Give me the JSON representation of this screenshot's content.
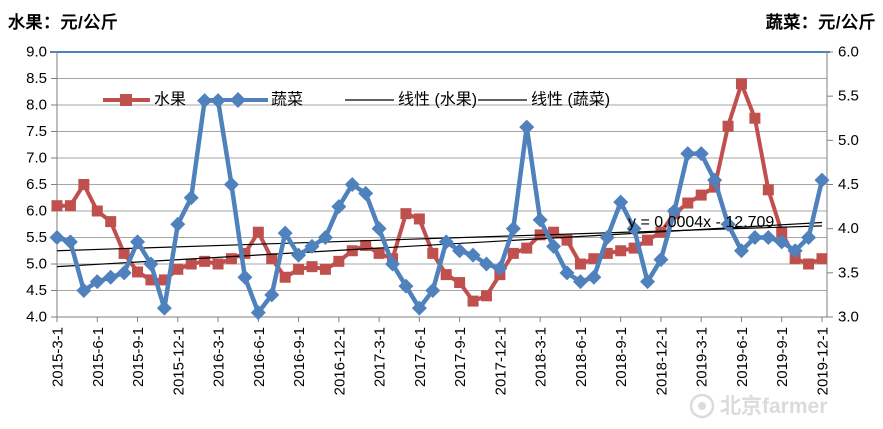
{
  "titles": {
    "left_axis_title": "水果：元/公斤",
    "right_axis_title": "蔬菜：元/公斤"
  },
  "legend": {
    "position": "top-inside",
    "items": [
      {
        "label": "水果",
        "marker": "square",
        "color": "#C0504D"
      },
      {
        "label": "蔬菜",
        "marker": "diamond",
        "color": "#4F81BD"
      },
      {
        "label": "线性 (水果)",
        "marker": "line",
        "color": "#000000"
      },
      {
        "label": "线性 (蔬菜)",
        "marker": "line",
        "color": "#000000"
      }
    ]
  },
  "watermark": {
    "icon": "weibo-logo",
    "text": "北京farmer",
    "color": "#cfcfcf"
  },
  "colors": {
    "fruit": "#C0504D",
    "vegetable": "#4F81BD",
    "gridline": "#a6a6a6",
    "plot_border": "#7f7f7f",
    "top_border": "#4F81BD",
    "trendline": "#000000",
    "text": "#000000"
  },
  "chart_data": {
    "type": "line",
    "grid": true,
    "x": [
      "2015-3-1",
      "2015-4-1",
      "2015-5-1",
      "2015-6-1",
      "2015-7-1",
      "2015-8-1",
      "2015-9-1",
      "2015-10-1",
      "2015-11-1",
      "2015-12-1",
      "2016-1-1",
      "2016-2-1",
      "2016-3-1",
      "2016-4-1",
      "2016-5-1",
      "2016-6-1",
      "2016-7-1",
      "2016-8-1",
      "2016-9-1",
      "2016-10-1",
      "2016-11-1",
      "2016-12-1",
      "2017-1-1",
      "2017-2-1",
      "2017-3-1",
      "2017-4-1",
      "2017-5-1",
      "2017-6-1",
      "2017-7-1",
      "2017-8-1",
      "2017-9-1",
      "2017-10-1",
      "2017-11-1",
      "2017-12-1",
      "2018-1-1",
      "2018-2-1",
      "2018-3-1",
      "2018-4-1",
      "2018-5-1",
      "2018-6-1",
      "2018-7-1",
      "2018-8-1",
      "2018-9-1",
      "2018-10-1",
      "2018-11-1",
      "2018-12-1",
      "2019-1-1",
      "2019-2-1",
      "2019-3-1",
      "2019-4-1",
      "2019-5-1",
      "2019-6-1",
      "2019-7-1",
      "2019-8-1",
      "2019-9-1",
      "2019-10-1",
      "2019-11-1",
      "2019-12-1"
    ],
    "x_tick_labels": [
      "2015-3-1",
      "2015-6-1",
      "2015-9-1",
      "2015-12-1",
      "2016-3-1",
      "2016-6-1",
      "2016-9-1",
      "2016-12-1",
      "2017-3-1",
      "2017-6-1",
      "2017-9-1",
      "2017-12-1",
      "2018-3-1",
      "2018-6-1",
      "2018-9-1",
      "2018-12-1",
      "2019-3-1",
      "2019-6-1",
      "2019-9-1",
      "2019-12-1"
    ],
    "series": [
      {
        "name": "水果",
        "axis": "left",
        "color": "#C0504D",
        "marker": "square",
        "values": [
          6.1,
          6.1,
          6.5,
          6.0,
          5.8,
          5.2,
          4.85,
          4.7,
          4.7,
          4.9,
          5.0,
          5.05,
          5.0,
          5.1,
          5.2,
          5.6,
          5.1,
          4.75,
          4.9,
          4.95,
          4.9,
          5.05,
          5.25,
          5.35,
          5.2,
          5.1,
          5.95,
          5.85,
          5.2,
          4.8,
          4.65,
          4.3,
          4.4,
          4.8,
          5.2,
          5.3,
          5.55,
          5.6,
          5.45,
          5.0,
          5.1,
          5.2,
          5.25,
          5.3,
          5.45,
          5.6,
          5.95,
          6.15,
          6.3,
          6.45,
          7.6,
          8.4,
          7.75,
          6.4,
          5.6,
          5.1,
          5.0,
          5.1
        ]
      },
      {
        "name": "蔬菜",
        "axis": "right",
        "color": "#4F81BD",
        "marker": "diamond",
        "values": [
          3.9,
          3.85,
          3.3,
          3.4,
          3.45,
          3.5,
          3.85,
          3.6,
          3.1,
          4.05,
          4.35,
          5.45,
          5.45,
          4.5,
          3.45,
          3.05,
          3.25,
          3.95,
          3.7,
          3.8,
          3.9,
          4.25,
          4.5,
          4.4,
          4.0,
          3.6,
          3.35,
          3.1,
          3.3,
          3.85,
          3.75,
          3.7,
          3.6,
          3.55,
          4.0,
          5.15,
          4.1,
          3.8,
          3.5,
          3.4,
          3.45,
          3.9,
          4.3,
          4.0,
          3.4,
          3.65,
          4.2,
          4.85,
          4.85,
          4.55,
          4.05,
          3.75,
          3.9,
          3.9,
          3.85,
          3.75,
          3.9,
          4.55
        ]
      }
    ],
    "trendlines": [
      {
        "name": "线性 (水果)",
        "axis": "left",
        "start": 5.25,
        "end": 5.72,
        "color": "#000000"
      },
      {
        "name": "线性 (蔬菜)",
        "axis": "right",
        "start": 3.57,
        "end": 4.07,
        "color": "#000000"
      }
    ],
    "annotation": {
      "text": "y = 0.0004x - 12.709"
    },
    "axes": {
      "left": {
        "title": "水果：元/公斤",
        "min": 4.0,
        "max": 9.0,
        "step": 0.5,
        "ticks": [
          "9.0",
          "8.5",
          "8.0",
          "7.5",
          "7.0",
          "6.5",
          "6.0",
          "5.5",
          "5.0",
          "4.5",
          "4.0"
        ]
      },
      "right": {
        "title": "蔬菜：元/公斤",
        "min": 3.0,
        "max": 6.0,
        "step": 0.5,
        "ticks": [
          "6.0",
          "5.5",
          "5.0",
          "4.5",
          "4.0",
          "3.5",
          "3.0"
        ]
      }
    },
    "legend_position": "top-inside"
  }
}
